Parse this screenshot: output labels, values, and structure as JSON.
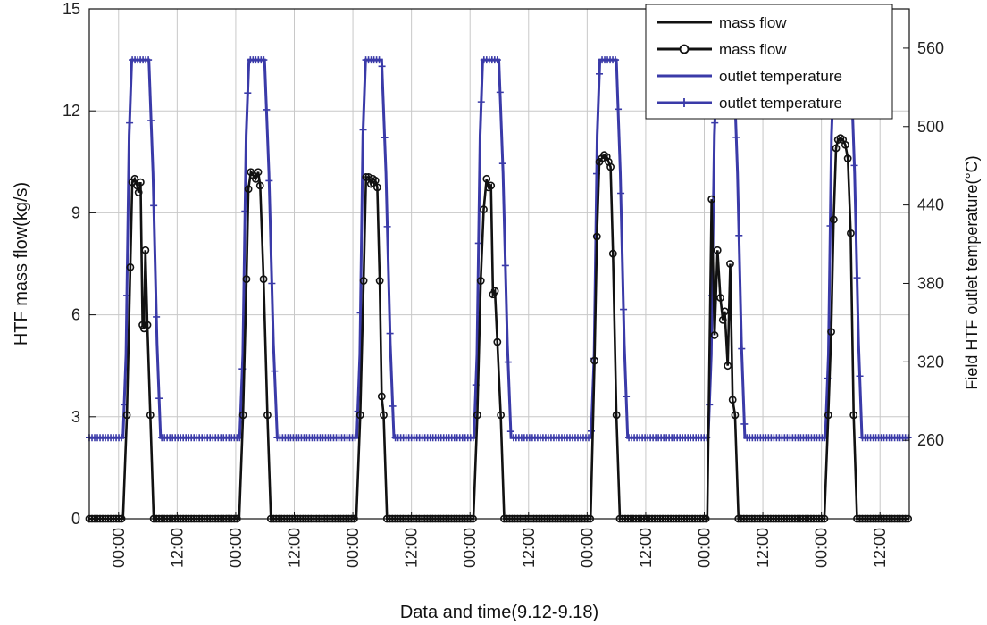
{
  "chart_data": {
    "type": "line",
    "title": "",
    "xlabel": "Data and time(9.12-9.18)",
    "ylabel_left": "HTF mass flow(kg/s)",
    "ylabel_right": "Field HTF outlet temperature(°C)",
    "x_tick_labels": [
      "00:00",
      "12:00",
      "00:00",
      "12:00",
      "00:00",
      "12:00",
      "00:00",
      "12:00",
      "00:00",
      "12:00",
      "00:00",
      "12:00",
      "00:00",
      "12:00"
    ],
    "ylim_left": [
      0,
      15
    ],
    "y_ticks_left": [
      0,
      3,
      6,
      9,
      12,
      15
    ],
    "ylim_right": [
      200,
      590
    ],
    "y_ticks_right": [
      260,
      320,
      380,
      440,
      500,
      560
    ],
    "grid": true,
    "legend_position": "top-right",
    "legend": [
      {
        "label": "mass flow",
        "style": "line"
      },
      {
        "label": "mass flow",
        "style": "line-circle"
      },
      {
        "label": "outlet temperature",
        "style": "line"
      },
      {
        "label": "outlet temperature",
        "style": "line-plus"
      }
    ],
    "colors": {
      "mass_flow": "#111111",
      "temperature": "#3a3aa8",
      "grid": "#c8c8c8"
    },
    "x_unit": "hours since 9.12 00:00",
    "mass_flow_days": [
      {
        "start": 6.9,
        "end": 15.9,
        "points": [
          [
            6.9,
            0
          ],
          [
            7.7,
            3.05
          ],
          [
            8.4,
            7.4
          ],
          [
            8.8,
            9.9
          ],
          [
            9.3,
            10.0
          ],
          [
            9.8,
            9.8
          ],
          [
            10.1,
            9.6
          ],
          [
            10.5,
            9.9
          ],
          [
            10.9,
            5.7
          ],
          [
            11.2,
            5.6
          ],
          [
            11.5,
            7.9
          ],
          [
            11.9,
            5.7
          ],
          [
            12.5,
            3.05
          ],
          [
            13.2,
            0
          ]
        ]
      },
      {
        "start": 30.7,
        "end": 39.6,
        "points": [
          [
            30.7,
            0
          ],
          [
            31.5,
            3.05
          ],
          [
            32.2,
            7.05
          ],
          [
            32.6,
            9.7
          ],
          [
            33.1,
            10.2
          ],
          [
            33.6,
            10.1
          ],
          [
            34.1,
            10.0
          ],
          [
            34.6,
            10.2
          ],
          [
            35.0,
            9.8
          ],
          [
            35.7,
            7.05
          ],
          [
            36.5,
            3.05
          ],
          [
            37.2,
            0
          ]
        ]
      },
      {
        "start": 54.7,
        "end": 63.6,
        "points": [
          [
            54.7,
            0
          ],
          [
            55.5,
            3.05
          ],
          [
            56.2,
            7.0
          ],
          [
            56.7,
            10.05
          ],
          [
            57.2,
            10.05
          ],
          [
            57.7,
            9.85
          ],
          [
            58.1,
            10.0
          ],
          [
            58.6,
            9.95
          ],
          [
            59.0,
            9.75
          ],
          [
            59.5,
            7.0
          ],
          [
            59.9,
            3.6
          ],
          [
            60.3,
            3.05
          ],
          [
            61.0,
            0
          ]
        ]
      },
      {
        "start": 78.7,
        "end": 87.6,
        "points": [
          [
            78.7,
            0
          ],
          [
            79.5,
            3.05
          ],
          [
            80.2,
            7.0
          ],
          [
            80.8,
            9.1
          ],
          [
            81.4,
            10.0
          ],
          [
            81.8,
            9.75
          ],
          [
            82.3,
            9.8
          ],
          [
            82.7,
            6.6
          ],
          [
            83.1,
            6.7
          ],
          [
            83.6,
            5.2
          ],
          [
            84.3,
            3.05
          ],
          [
            85.0,
            0
          ]
        ]
      },
      {
        "start": 102.7,
        "end": 111.6,
        "points": [
          [
            102.7,
            0
          ],
          [
            103.5,
            4.65
          ],
          [
            104.0,
            8.3
          ],
          [
            104.5,
            10.5
          ],
          [
            105.0,
            10.6
          ],
          [
            105.5,
            10.7
          ],
          [
            106.0,
            10.65
          ],
          [
            106.4,
            10.5
          ],
          [
            106.8,
            10.35
          ],
          [
            107.3,
            7.8
          ],
          [
            108.0,
            3.05
          ],
          [
            108.7,
            0
          ]
        ]
      },
      {
        "start": 126.6,
        "end": 135.6,
        "points": [
          [
            126.6,
            0
          ],
          [
            127.5,
            9.4
          ],
          [
            128.1,
            5.4
          ],
          [
            128.7,
            7.9
          ],
          [
            129.3,
            6.5
          ],
          [
            129.8,
            5.85
          ],
          [
            130.2,
            6.1
          ],
          [
            130.8,
            4.5
          ],
          [
            131.3,
            7.5
          ],
          [
            131.8,
            3.5
          ],
          [
            132.3,
            3.05
          ],
          [
            133.0,
            0
          ]
        ]
      },
      {
        "start": 150.6,
        "end": 159.6,
        "points": [
          [
            150.6,
            0
          ],
          [
            151.4,
            3.05
          ],
          [
            152.0,
            5.5
          ],
          [
            152.5,
            8.8
          ],
          [
            153.0,
            10.9
          ],
          [
            153.4,
            11.15
          ],
          [
            153.9,
            11.2
          ],
          [
            154.4,
            11.15
          ],
          [
            154.9,
            11.0
          ],
          [
            155.4,
            10.6
          ],
          [
            156.0,
            8.4
          ],
          [
            156.6,
            3.05
          ],
          [
            157.3,
            0
          ]
        ]
      }
    ],
    "temperature_days": [
      {
        "rise_start": 6.9,
        "rise_end": 8.7,
        "fall_start": 12.2,
        "fall_end": 14.6,
        "low": 262,
        "high": 551
      },
      {
        "rise_start": 30.8,
        "rise_end": 32.7,
        "fall_start": 35.9,
        "fall_end": 38.5,
        "low": 262,
        "high": 551
      },
      {
        "rise_start": 54.8,
        "rise_end": 56.6,
        "fall_start": 59.9,
        "fall_end": 62.4,
        "low": 262,
        "high": 551
      },
      {
        "rise_start": 78.8,
        "rise_end": 80.6,
        "fall_start": 83.9,
        "fall_end": 86.4,
        "low": 262,
        "high": 551
      },
      {
        "rise_start": 102.8,
        "rise_end": 104.6,
        "fall_start": 108.0,
        "fall_end": 110.3,
        "low": 262,
        "high": 551
      },
      {
        "rise_start": 126.8,
        "rise_end": 128.6,
        "fall_start": 132.0,
        "fall_end": 134.3,
        "low": 262,
        "high": 551
      },
      {
        "rise_start": 150.8,
        "rise_end": 152.6,
        "fall_start": 156.0,
        "fall_end": 158.3,
        "low": 262,
        "high": 551
      }
    ],
    "x_end": 168
  }
}
